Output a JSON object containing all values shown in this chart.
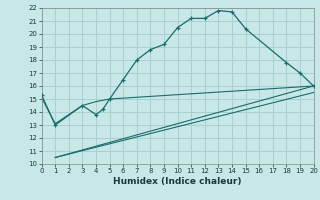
{
  "xlabel": "Humidex (Indice chaleur)",
  "bg_color": "#c8e8e8",
  "grid_color": "#a8d0d0",
  "line_color": "#1a6b6b",
  "xlim": [
    0,
    20
  ],
  "ylim": [
    10,
    22
  ],
  "xticks": [
    0,
    1,
    2,
    3,
    4,
    5,
    6,
    7,
    8,
    9,
    10,
    11,
    12,
    13,
    14,
    15,
    16,
    17,
    18,
    19,
    20
  ],
  "yticks": [
    10,
    11,
    12,
    13,
    14,
    15,
    16,
    17,
    18,
    19,
    20,
    21,
    22
  ],
  "series1_x": [
    0,
    1,
    3,
    4,
    4.5,
    5,
    6,
    7,
    8,
    9,
    10,
    11,
    12,
    13,
    14,
    15,
    18,
    19,
    20
  ],
  "series1_y": [
    15.3,
    13.0,
    14.5,
    13.8,
    14.2,
    15.0,
    16.5,
    18.0,
    18.8,
    19.2,
    20.5,
    21.2,
    21.2,
    21.8,
    21.7,
    20.4,
    17.8,
    17.0,
    16.0
  ],
  "series2_x": [
    0,
    1,
    3,
    4,
    5,
    20
  ],
  "series2_y": [
    15.1,
    13.1,
    14.5,
    14.8,
    15.0,
    16.0
  ],
  "series3_x": [
    1,
    20
  ],
  "series3_y": [
    10.5,
    16.0
  ],
  "series4_x": [
    1,
    20
  ],
  "series4_y": [
    10.5,
    15.5
  ],
  "ylabel_fontsize": 5.5,
  "xlabel_fontsize": 6.5,
  "tick_fontsize": 5.0
}
